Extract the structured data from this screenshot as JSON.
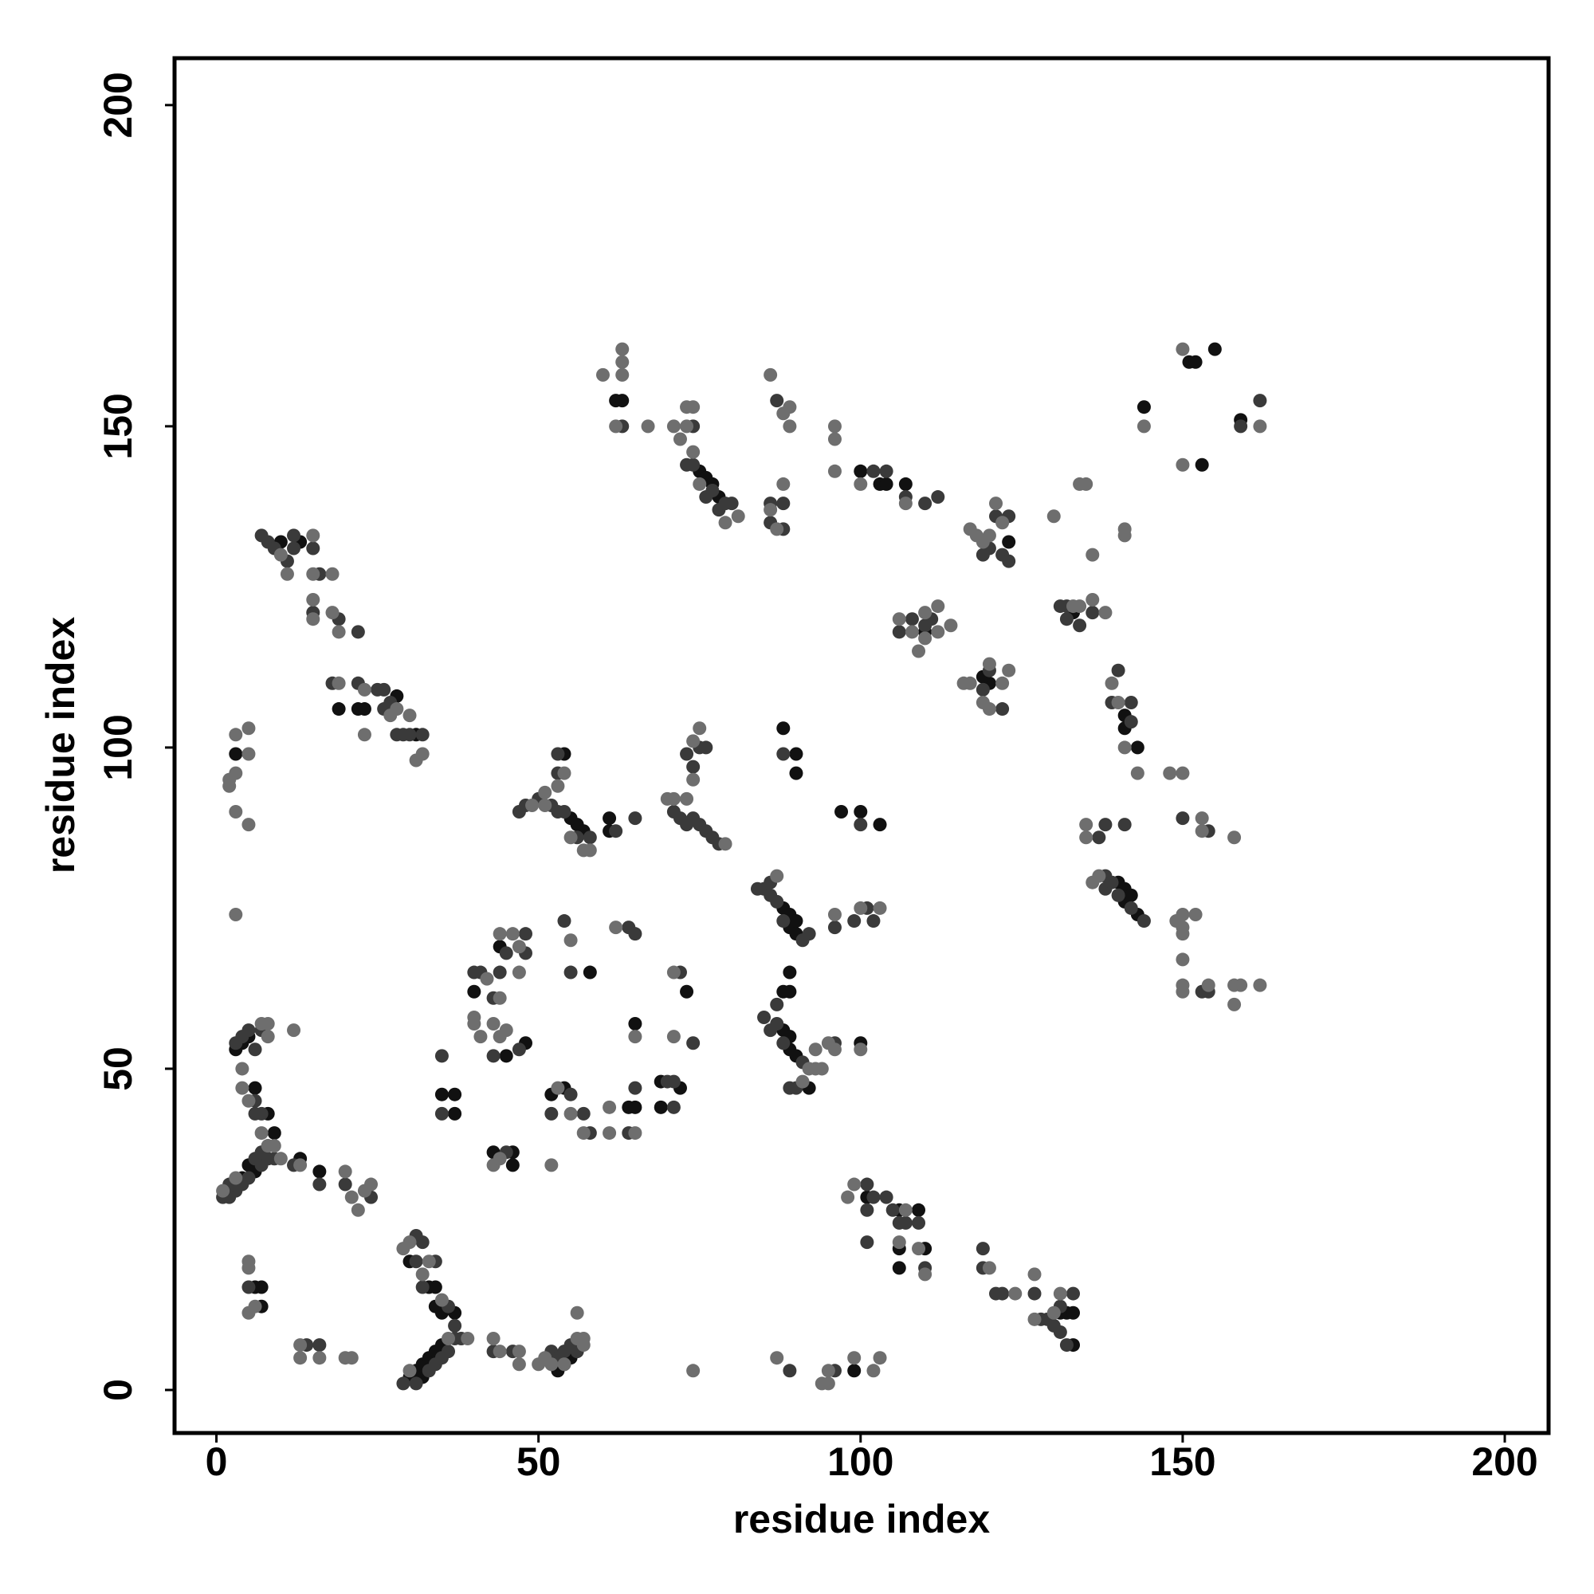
{
  "chart_data": {
    "type": "scatter",
    "xlabel": "residue index",
    "ylabel": "residue index",
    "xlim": [
      -6.5,
      206.8
    ],
    "ylim": [
      -6.7,
      207.3
    ],
    "xticks": [
      0,
      50,
      100,
      150,
      200
    ],
    "yticks": [
      0,
      50,
      100,
      150,
      200
    ],
    "grid": false,
    "series": [
      {
        "color": "#111111",
        "x": [
          3,
          4,
          5,
          6,
          7,
          7,
          6,
          8,
          9,
          3,
          4,
          5,
          6,
          13,
          16,
          30,
          31,
          32,
          33,
          34,
          35,
          32,
          34,
          35,
          37,
          30,
          33,
          34,
          37,
          37,
          35,
          43,
          46,
          46,
          52,
          54,
          53,
          54,
          55,
          40,
          48,
          45,
          44,
          54,
          56,
          57,
          55,
          61,
          61,
          64,
          65,
          69,
          69,
          72,
          65,
          73,
          58,
          62,
          63,
          75,
          76,
          77,
          78,
          100,
          103,
          104,
          107,
          88,
          89,
          89,
          90,
          90,
          88,
          89,
          89,
          88,
          89,
          89,
          90,
          92,
          90,
          90,
          88,
          97,
          100,
          103,
          100,
          99,
          106,
          106,
          109,
          106,
          110,
          101,
          131,
          132,
          133,
          133,
          140,
          141,
          141,
          142,
          143,
          141,
          143,
          141,
          123,
          120,
          110,
          133,
          144,
          151,
          152,
          153,
          159,
          155,
          28,
          31,
          22,
          19,
          23,
          13,
          10,
          119
        ],
        "values": [
          99,
          54,
          55,
          16,
          13,
          16,
          47,
          43,
          40,
          53,
          33,
          35,
          34,
          36,
          34,
          2,
          3,
          4,
          5,
          6,
          7,
          2,
          13,
          12,
          12,
          20,
          16,
          16,
          46,
          43,
          46,
          37,
          37,
          35,
          46,
          47,
          3,
          4,
          5,
          62,
          54,
          52,
          69,
          99,
          88,
          87,
          89,
          89,
          87,
          44,
          44,
          48,
          44,
          47,
          57,
          62,
          65,
          154,
          154,
          143,
          142,
          141,
          139,
          143,
          141,
          141,
          141,
          75,
          74,
          72,
          73,
          71,
          62,
          62,
          65,
          56,
          55,
          53,
          52,
          47,
          99,
          96,
          103,
          90,
          90,
          88,
          54,
          3,
          22,
          19,
          28,
          28,
          22,
          30,
          12,
          12,
          12,
          7,
          79,
          78,
          76,
          77,
          74,
          105,
          100,
          103,
          132,
          110,
          118,
          121,
          153,
          160,
          160,
          144,
          151,
          162,
          108,
          102,
          106,
          106,
          106,
          132,
          132,
          111
        ]
      },
      {
        "color": "#3a3a3a",
        "x": [
          1,
          2,
          3,
          5,
          7,
          8,
          2,
          4,
          6,
          7,
          8,
          9,
          12,
          16,
          20,
          24,
          4,
          5,
          6,
          7,
          3,
          6,
          6,
          7,
          5,
          14,
          16,
          29,
          31,
          33,
          34,
          35,
          36,
          37,
          38,
          31,
          32,
          31,
          34,
          32,
          36,
          37,
          43,
          46,
          52,
          53,
          54,
          56,
          55,
          35,
          35,
          45,
          40,
          41,
          43,
          43,
          44,
          45,
          47,
          48,
          48,
          55,
          55,
          52,
          57,
          58,
          65,
          64,
          70,
          71,
          71,
          72,
          74,
          64,
          65,
          54,
          47,
          48,
          50,
          52,
          53,
          54,
          56,
          58,
          53,
          53,
          62,
          65,
          71,
          72,
          73,
          74,
          75,
          76,
          77,
          78,
          74,
          75,
          76,
          73,
          73,
          74,
          76,
          77,
          78,
          79,
          80,
          63,
          74,
          86,
          88,
          87,
          88,
          86,
          102,
          104,
          107,
          110,
          112,
          84,
          85,
          86,
          86,
          87,
          88,
          91,
          92,
          86,
          85,
          87,
          88,
          91,
          89,
          90,
          87,
          96,
          96,
          99,
          101,
          102,
          100,
          88,
          119,
          120,
          122,
          123,
          123,
          121,
          131,
          132,
          132,
          134,
          136,
          106,
          108,
          110,
          111,
          119,
          120,
          122,
          139,
          140,
          142,
          142,
          138,
          138,
          139,
          140,
          142,
          144,
          137,
          138,
          141,
          153,
          154,
          150,
          154,
          101,
          101,
          102,
          104,
          105,
          106,
          107,
          109,
          110,
          101,
          119,
          119,
          121,
          122,
          127,
          128,
          129,
          130,
          131,
          131,
          132,
          133,
          89,
          96,
          7,
          8,
          9,
          11,
          12,
          12,
          15,
          16,
          15,
          19,
          22,
          18,
          22,
          25,
          26,
          26,
          27,
          28,
          30,
          32,
          29,
          162,
          159
        ],
        "values": [
          30,
          32,
          31,
          33,
          35,
          36,
          30,
          32,
          36,
          37,
          38,
          36,
          35,
          32,
          32,
          30,
          55,
          56,
          53,
          56,
          54,
          45,
          43,
          43,
          16,
          7,
          7,
          1,
          1,
          3,
          4,
          5,
          6,
          8,
          8,
          24,
          23,
          20,
          20,
          16,
          13,
          10,
          6,
          6,
          6,
          5,
          6,
          6,
          7,
          52,
          43,
          37,
          65,
          65,
          61,
          52,
          65,
          68,
          53,
          71,
          68,
          65,
          46,
          43,
          43,
          40,
          47,
          40,
          48,
          48,
          44,
          65,
          54,
          72,
          71,
          73,
          90,
          91,
          92,
          91,
          90,
          90,
          86,
          86,
          96,
          99,
          87,
          89,
          90,
          89,
          88,
          89,
          88,
          87,
          86,
          85,
          97,
          100,
          100,
          99,
          144,
          144,
          139,
          140,
          137,
          138,
          138,
          150,
          150,
          138,
          138,
          154,
          134,
          135,
          143,
          143,
          139,
          138,
          139,
          78,
          78,
          79,
          77,
          76,
          73,
          70,
          71,
          56,
          58,
          57,
          54,
          51,
          47,
          47,
          60,
          54,
          72,
          73,
          75,
          73,
          88,
          99,
          130,
          131,
          130,
          129,
          136,
          136,
          122,
          120,
          122,
          119,
          121,
          118,
          120,
          119,
          120,
          109,
          112,
          106,
          107,
          112,
          107,
          104,
          80,
          78,
          79,
          77,
          75,
          73,
          86,
          88,
          88,
          62,
          62,
          89,
          87,
          32,
          28,
          30,
          30,
          28,
          26,
          26,
          26,
          19,
          23,
          22,
          19,
          15,
          15,
          15,
          11,
          11,
          10,
          9,
          13,
          7,
          15,
          3,
          3,
          133,
          132,
          131,
          129,
          133,
          131,
          131,
          127,
          121,
          120,
          118,
          110,
          110,
          109,
          109,
          106,
          107,
          102,
          102,
          102,
          102,
          154,
          150
        ]
      },
      {
        "color": "#6e6e6e",
        "x": [
          1,
          3,
          20,
          21,
          22,
          23,
          24,
          10,
          13,
          4,
          4,
          5,
          7,
          8,
          8,
          12,
          7,
          8,
          9,
          5,
          5,
          5,
          6,
          13,
          13,
          16,
          20,
          21,
          30,
          29,
          30,
          32,
          33,
          35,
          39,
          36,
          43,
          44,
          47,
          47,
          50,
          51,
          52,
          54,
          56,
          57,
          57,
          56,
          43,
          44,
          52,
          40,
          40,
          42,
          41,
          43,
          44,
          44,
          44,
          45,
          46,
          47,
          47,
          53,
          55,
          55,
          57,
          61,
          61,
          62,
          65,
          65,
          71,
          71,
          49,
          51,
          51,
          55,
          57,
          58,
          53,
          54,
          70,
          71,
          73,
          74,
          75,
          74,
          79,
          60,
          62,
          63,
          63,
          63,
          67,
          71,
          72,
          73,
          73,
          74,
          74,
          79,
          81,
          75,
          86,
          87,
          88,
          86,
          88,
          89,
          89,
          96,
          96,
          96,
          100,
          107,
          87,
          91,
          92,
          93,
          95,
          96,
          100,
          93,
          94,
          96,
          100,
          103,
          117,
          118,
          119,
          120,
          121,
          122,
          130,
          133,
          134,
          136,
          138,
          136,
          134,
          135,
          141,
          141,
          106,
          108,
          109,
          110,
          110,
          112,
          112,
          114,
          116,
          117,
          119,
          120,
          120,
          122,
          123,
          139,
          140,
          141,
          143,
          135,
          135,
          136,
          137,
          148,
          150,
          149,
          150,
          150,
          150,
          150,
          150,
          150,
          152,
          154,
          158,
          158,
          159,
          162,
          153,
          153,
          158,
          144,
          150,
          150,
          162,
          98,
          99,
          106,
          107,
          109,
          110,
          120,
          124,
          127,
          127,
          130,
          131,
          87,
          94,
          95,
          95,
          99,
          102,
          103,
          74,
          2,
          2,
          3,
          3,
          5,
          5,
          5,
          3,
          3,
          10,
          11,
          15,
          15,
          18,
          15,
          15,
          18,
          19,
          19,
          23,
          23,
          27,
          28,
          30,
          31,
          32
        ],
        "values": [
          31,
          33,
          34,
          30,
          28,
          31,
          32,
          36,
          35,
          50,
          47,
          45,
          57,
          55,
          57,
          56,
          40,
          38,
          38,
          20,
          19,
          12,
          13,
          7,
          5,
          5,
          5,
          5,
          3,
          22,
          23,
          18,
          20,
          14,
          8,
          8,
          8,
          6,
          6,
          4,
          4,
          5,
          4,
          4,
          8,
          7,
          8,
          12,
          35,
          36,
          35,
          58,
          57,
          64,
          55,
          57,
          55,
          61,
          71,
          56,
          71,
          65,
          69,
          47,
          70,
          43,
          40,
          44,
          40,
          72,
          55,
          40,
          55,
          65,
          91,
          93,
          91,
          86,
          84,
          84,
          94,
          96,
          92,
          92,
          92,
          101,
          103,
          95,
          85,
          158,
          150,
          158,
          160,
          162,
          150,
          150,
          148,
          150,
          153,
          153,
          146,
          135,
          136,
          141,
          137,
          134,
          141,
          158,
          152,
          153,
          150,
          150,
          148,
          143,
          141,
          138,
          80,
          48,
          50,
          53,
          54,
          53,
          53,
          50,
          50,
          74,
          75,
          75,
          134,
          133,
          132,
          133,
          138,
          135,
          136,
          122,
          122,
          123,
          121,
          130,
          141,
          141,
          134,
          133,
          120,
          118,
          115,
          117,
          121,
          122,
          118,
          119,
          110,
          110,
          107,
          106,
          113,
          110,
          112,
          110,
          107,
          100,
          96,
          88,
          86,
          79,
          80,
          96,
          96,
          73,
          72,
          74,
          71,
          67,
          63,
          62,
          74,
          63,
          60,
          63,
          63,
          63,
          89,
          87,
          86,
          150,
          144,
          162,
          150,
          30,
          32,
          23,
          28,
          22,
          18,
          19,
          15,
          18,
          11,
          12,
          15,
          5,
          1,
          1,
          3,
          5,
          3,
          5,
          3,
          95,
          94,
          96,
          102,
          103,
          99,
          88,
          90,
          74,
          130,
          127,
          133,
          127,
          127,
          123,
          120,
          121,
          118,
          110,
          109,
          102,
          105,
          106,
          105,
          98,
          99
        ]
      }
    ]
  }
}
